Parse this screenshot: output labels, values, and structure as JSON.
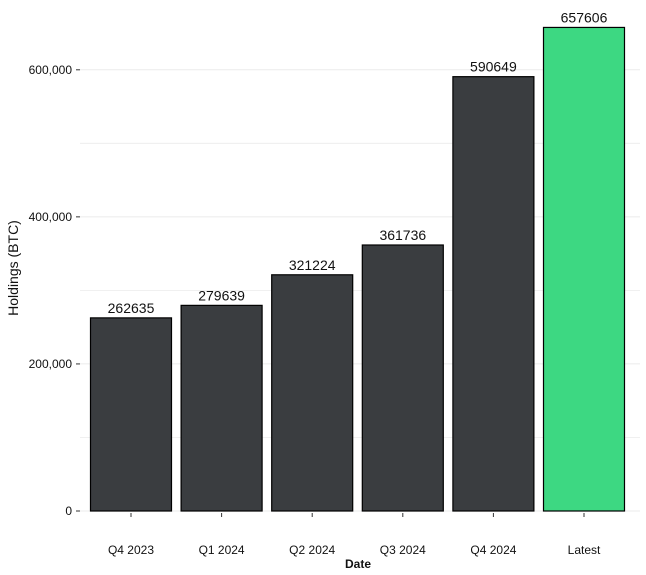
{
  "chart_data": {
    "type": "bar",
    "title": "",
    "xlabel": "Date",
    "ylabel": "Holdings (BTC)",
    "categories": [
      "Q4 2023",
      "Q1 2024",
      "Q2 2024",
      "Q3 2024",
      "Q4 2024",
      "Latest"
    ],
    "values": [
      262635,
      279639,
      321224,
      361736,
      590649,
      657606
    ],
    "value_labels": [
      "262635",
      "279639",
      "321224",
      "361736",
      "590649",
      "657606"
    ],
    "ylim": [
      0,
      665000
    ],
    "yticks": [
      0,
      200000,
      400000,
      600000
    ],
    "ytick_labels": [
      "0",
      "200,000",
      "400,000",
      "600,000"
    ],
    "minor_gridlines": [
      100000,
      300000,
      500000
    ],
    "grid": true,
    "legend": "none",
    "colors": {
      "default_bar": "#3a3d40",
      "highlight_bar": "#3dd882",
      "bar_outline": "#000000",
      "gridline": "#ebebeb"
    },
    "highlight_index": 5
  }
}
